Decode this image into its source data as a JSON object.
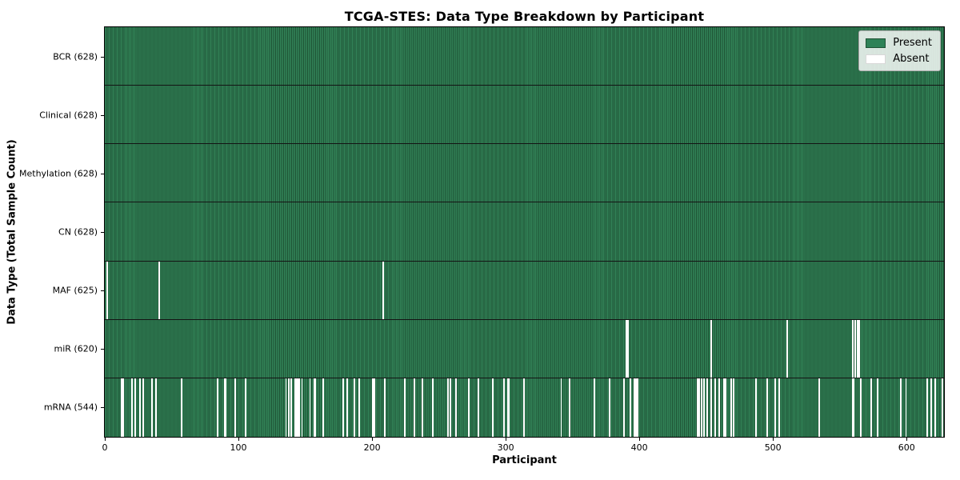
{
  "colors": {
    "present_fill": "#318156",
    "present_edge": "#1e5335",
    "absent_fill": "#ffffff",
    "row_separator": "#141414",
    "axis": "#000000",
    "background": "#ffffff",
    "legend_background": "#f2f2f2",
    "legend_border": "#b0b0b0"
  },
  "chart_data": {
    "type": "heatmap",
    "title": "TCGA-STES: Data Type Breakdown by Participant",
    "xlabel": "Participant",
    "ylabel": "Data Type (Total Sample Count)",
    "xlim": [
      0,
      628
    ],
    "x_ticks": [
      0,
      100,
      200,
      300,
      400,
      500,
      600
    ],
    "n_participants": 628,
    "grid": false,
    "legend_position": "upper right",
    "legend_entries": [
      {
        "label": "Present",
        "color": "#2e8257"
      },
      {
        "label": "Absent",
        "color": "#ffffff"
      }
    ],
    "rows": [
      {
        "data_type": "BCR",
        "tick_label": "BCR (628)",
        "present_count": 628,
        "absent_participants": []
      },
      {
        "data_type": "Clinical",
        "tick_label": "Clinical (628)",
        "present_count": 628,
        "absent_participants": []
      },
      {
        "data_type": "Methylation",
        "tick_label": "Methylation (628)",
        "present_count": 628,
        "absent_participants": []
      },
      {
        "data_type": "CN",
        "tick_label": "CN (628)",
        "present_count": 628,
        "absent_participants": []
      },
      {
        "data_type": "MAF",
        "tick_label": "MAF (625)",
        "present_count": 625,
        "absent_participants": [
          1,
          40,
          208
        ]
      },
      {
        "data_type": "miR",
        "tick_label": "miR (620)",
        "present_count": 620,
        "absent_participants": [
          390,
          391,
          453,
          510,
          559,
          561,
          563,
          564
        ]
      },
      {
        "data_type": "mRNA",
        "tick_label": "mRNA (544)",
        "present_count": 544,
        "absent_participants": [
          12,
          13,
          20,
          22,
          26,
          28,
          35,
          38,
          57,
          84,
          89,
          90,
          97,
          105,
          135,
          137,
          139,
          142,
          143,
          144,
          145,
          147,
          153,
          156,
          157,
          163,
          178,
          181,
          186,
          190,
          200,
          201,
          209,
          224,
          231,
          237,
          245,
          256,
          258,
          262,
          272,
          279,
          290,
          298,
          301,
          302,
          313,
          341,
          347,
          366,
          377,
          388,
          393,
          396,
          397,
          398,
          443,
          444,
          446,
          448,
          450,
          453,
          456,
          459,
          463,
          464,
          468,
          470,
          487,
          495,
          501,
          504,
          534,
          559,
          560,
          565,
          573,
          578,
          595,
          599,
          615,
          618,
          621,
          626
        ]
      }
    ]
  }
}
